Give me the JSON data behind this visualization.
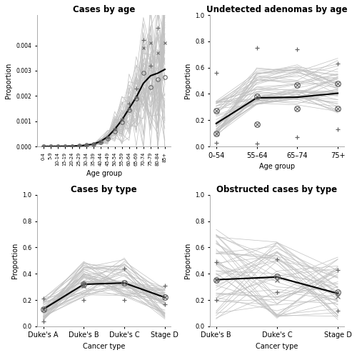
{
  "title_topleft": "Cases by age",
  "title_topright": "Undetected adenomas by age",
  "title_bottomleft": "Cases by type",
  "title_bottomright": "Obstructed cases by type",
  "xlabel_age": "Age group",
  "xlabel_cancer": "Cancer type",
  "ylabel_proportion": "Proportion",
  "age_groups_top": [
    "0-4",
    "5-9",
    "10-14",
    "15-19",
    "20-24",
    "25-29",
    "30-34",
    "35-39",
    "40-44",
    "45-49",
    "50-54",
    "55-59",
    "60-64",
    "65-69",
    "70-74",
    "75-79",
    "80-84",
    "85+"
  ],
  "age_groups_adenoma": [
    "0–54",
    "55–64",
    "65–74",
    "75+"
  ],
  "cancer_types_bl": [
    "Duke's A",
    "Duke's B",
    "Duke's C",
    "Stage D"
  ],
  "cancer_types_br": [
    "Duke's B",
    "Duke's C",
    "Stage D"
  ],
  "mean_cases_age": [
    5e-06,
    5e-06,
    8e-06,
    1e-05,
    1.5e-05,
    2.5e-05,
    5e-05,
    9e-05,
    0.0002,
    0.00038,
    0.00068,
    0.00105,
    0.0015,
    0.00195,
    0.0025,
    0.0028,
    0.0029,
    0.00305
  ],
  "target_plus_cases_age": [
    5e-06,
    5e-06,
    8e-06,
    1e-05,
    1.5e-05,
    2.5e-05,
    5e-05,
    9e-05,
    0.00018,
    0.00035,
    0.0007,
    0.0011,
    0.0017,
    0.0023,
    0.0042,
    0.0032,
    0.0047,
    0.0054
  ],
  "target_cross_cases_age": [
    5e-06,
    5e-06,
    8e-06,
    1e-05,
    1.5e-05,
    2.5e-05,
    5e-05,
    9e-05,
    0.0002,
    0.00038,
    0.00068,
    0.00105,
    0.0015,
    0.00195,
    0.0039,
    0.0041,
    0.0037,
    0.0041
  ],
  "target_circle_cases_age": [
    5e-06,
    5e-06,
    8e-06,
    1e-05,
    1.5e-05,
    2.5e-05,
    5e-05,
    9e-05,
    0.00017,
    0.00031,
    0.0006,
    0.00095,
    0.00145,
    0.0019,
    0.0029,
    0.00235,
    0.00265,
    0.00275
  ],
  "mean_adenoma": [
    0.175,
    0.37,
    0.375,
    0.405
  ],
  "plus_adenoma_low": [
    0.03,
    0.02,
    0.07,
    0.13
  ],
  "plus_adenoma_high": [
    0.56,
    0.75,
    0.74,
    0.63
  ],
  "circle_adenoma_high": [
    0.27,
    0.38,
    0.47,
    0.48
  ],
  "circle_adenoma_low": [
    0.1,
    0.17,
    0.29,
    0.29
  ],
  "mean_cases_type": [
    0.13,
    0.32,
    0.33,
    0.22
  ],
  "plus_cases_type_1": [
    0.21,
    0.33,
    0.2,
    0.31
  ],
  "plus_cases_type_2": [
    0.04,
    0.2,
    0.44,
    0.17
  ],
  "cross_cases_type": [
    0.13,
    0.31,
    0.33,
    0.22
  ],
  "circle_cases_type": [
    0.13,
    0.32,
    0.33,
    0.22
  ],
  "mean_obstructed": [
    0.355,
    0.375,
    0.25
  ],
  "plus_obstructed": [
    0.2,
    0.26,
    0.12
  ],
  "plus_obstructed_2": [
    0.49,
    0.51,
    0.43
  ],
  "cross_obstructed": [
    0.355,
    0.355,
    0.23
  ],
  "circle_obstructed": [
    0.355,
    0.38,
    0.26
  ],
  "n_sim": 50,
  "line_color": "#c0c0c0",
  "mean_color": "#000000",
  "marker_color": "#666666",
  "bg_color": "#ffffff",
  "ylim_age": [
    0,
    0.0052
  ],
  "yticks_age": [
    0.0,
    0.001,
    0.002,
    0.003,
    0.004
  ],
  "ylim_prop": [
    0.0,
    1.0
  ],
  "yticks_prop": [
    0.0,
    0.2,
    0.4,
    0.6,
    0.8,
    1.0
  ]
}
